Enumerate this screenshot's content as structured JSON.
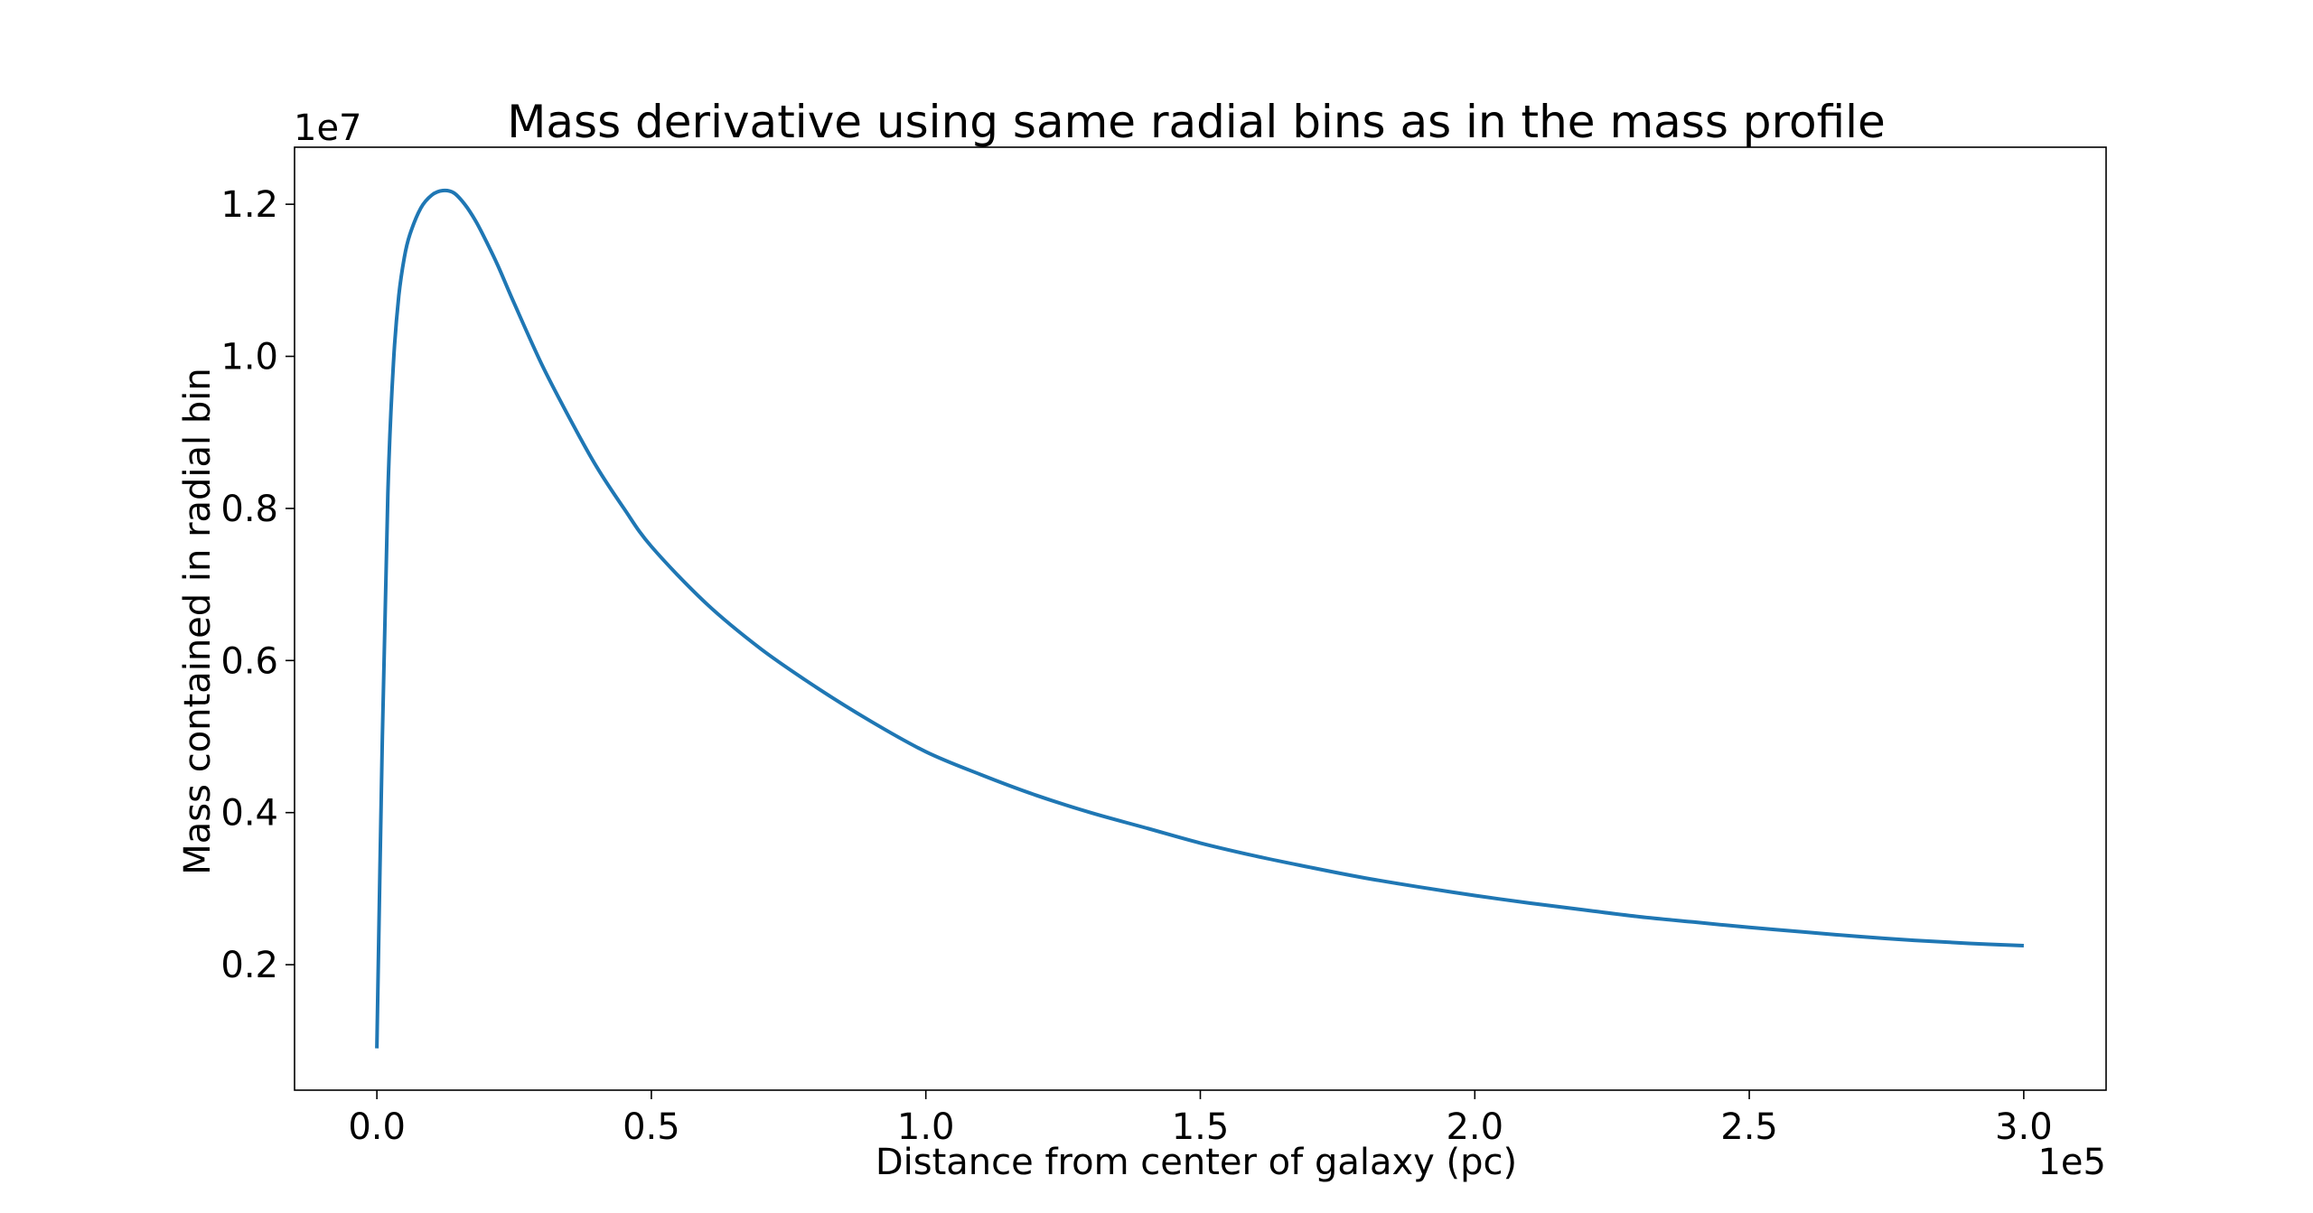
{
  "chart_data": {
    "type": "line",
    "title": "Mass derivative using same radial bins as in the mass profile",
    "xlabel": "Distance from center of galaxy (pc)",
    "ylabel": "Mass contained in radial bin",
    "x_offset_label": "1e5",
    "y_offset_label": "1e7",
    "xlim": [
      -0.15,
      3.15
    ],
    "ylim": [
      0.035,
      1.275
    ],
    "x_ticks": [
      0.0,
      0.5,
      1.0,
      1.5,
      2.0,
      2.5,
      3.0
    ],
    "x_tick_labels": [
      "0.0",
      "0.5",
      "1.0",
      "1.5",
      "2.0",
      "2.5",
      "3.0"
    ],
    "y_ticks": [
      0.2,
      0.4,
      0.6,
      0.8,
      1.0,
      1.2
    ],
    "y_tick_labels": [
      "0.2",
      "0.4",
      "0.6",
      "0.8",
      "1.0",
      "1.2"
    ],
    "grid": false,
    "line_color": "#1f77b4",
    "series": [
      {
        "x": [
          0.0,
          0.01,
          0.02,
          0.03,
          0.04,
          0.05,
          0.06,
          0.08,
          0.1,
          0.12,
          0.14,
          0.16,
          0.18,
          0.2,
          0.22,
          0.25,
          0.3,
          0.35,
          0.4,
          0.45,
          0.5,
          0.6,
          0.7,
          0.8,
          0.9,
          1.0,
          1.1,
          1.2,
          1.3,
          1.4,
          1.5,
          1.6,
          1.7,
          1.8,
          1.9,
          2.0,
          2.1,
          2.2,
          2.3,
          2.4,
          2.5,
          2.6,
          2.7,
          2.8,
          2.9,
          3.0
        ],
        "y": [
          0.09,
          0.5,
          0.82,
          0.99,
          1.08,
          1.13,
          1.16,
          1.195,
          1.212,
          1.218,
          1.215,
          1.2,
          1.178,
          1.15,
          1.12,
          1.07,
          0.99,
          0.92,
          0.855,
          0.8,
          0.75,
          0.675,
          0.615,
          0.565,
          0.52,
          0.48,
          0.45,
          0.423,
          0.4,
          0.38,
          0.36,
          0.343,
          0.328,
          0.314,
          0.302,
          0.291,
          0.281,
          0.272,
          0.263,
          0.256,
          0.249,
          0.243,
          0.237,
          0.232,
          0.228,
          0.225
        ]
      }
    ]
  }
}
